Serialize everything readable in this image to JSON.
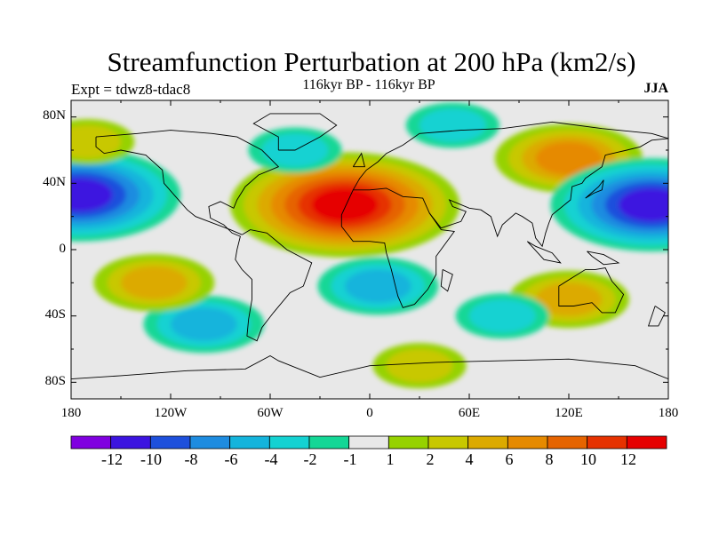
{
  "header": {
    "title": "Streamfunction Perturbation at 200 hPa (km2/s)",
    "experiment": "Expt = tdwz8-tdac8",
    "subtitle": "116kyr BP - 116kyr BP",
    "season": "JJA"
  },
  "axes": {
    "lat_labels": [
      "80N",
      "40N",
      "0",
      "40S",
      "80S"
    ],
    "lon_labels": [
      "180",
      "120W",
      "60W",
      "0",
      "60E",
      "120E",
      "180"
    ]
  },
  "colorbar": {
    "labels": [
      "-12",
      "-10",
      "-8",
      "-6",
      "-4",
      "-2",
      "-1",
      "1",
      "2",
      "4",
      "6",
      "8",
      "10",
      "12"
    ],
    "colors": [
      "#8000e0",
      "#3c14e0",
      "#1e50dc",
      "#1e8ce0",
      "#14b4dc",
      "#14d2d2",
      "#14d796",
      "#e8e8e8",
      "#96d200",
      "#c8c800",
      "#dcaa00",
      "#e68a00",
      "#e66400",
      "#e63200",
      "#e60000"
    ]
  },
  "chart_data": {
    "type": "heatmap",
    "title": "Streamfunction Perturbation at 200 hPa (km2/s)",
    "subtitle": "116kyr BP - 116kyr BP",
    "season": "JJA",
    "projection": "cylindrical equidistant",
    "lon_range": [
      -180,
      180
    ],
    "lat_range": [
      -90,
      90
    ],
    "contour_levels": [
      -12,
      -10,
      -8,
      -6,
      -4,
      -2,
      -1,
      1,
      2,
      4,
      6,
      8,
      10,
      12
    ],
    "features": [
      {
        "name": "max-north-africa",
        "lon": -15,
        "lat": 27,
        "value": 12
      },
      {
        "name": "max-central-asia",
        "lon": 120,
        "lat": 55,
        "value": 6
      },
      {
        "name": "min-east-pacific",
        "lon": -175,
        "lat": 33,
        "value": -10
      },
      {
        "name": "min-west-pacific",
        "lon": 170,
        "lat": 27,
        "value": -10
      },
      {
        "name": "min-south-atlantic",
        "lon": 5,
        "lat": -22,
        "value": -4
      },
      {
        "name": "min-south-pacific",
        "lon": -100,
        "lat": -45,
        "value": -4
      },
      {
        "name": "max-south-pacific",
        "lon": -130,
        "lat": -20,
        "value": 4
      },
      {
        "name": "max-australia",
        "lon": 120,
        "lat": -30,
        "value": 4
      },
      {
        "name": "max-north-pacific",
        "lon": -170,
        "lat": 65,
        "value": 2
      },
      {
        "name": "min-north-atlantic",
        "lon": -45,
        "lat": 60,
        "value": -2
      },
      {
        "name": "min-arctic-siberia",
        "lon": 50,
        "lat": 75,
        "value": -2
      },
      {
        "name": "min-south-indian",
        "lon": 80,
        "lat": -40,
        "value": -2
      },
      {
        "name": "max-southern-ocean",
        "lon": 30,
        "lat": -70,
        "value": 2
      }
    ]
  }
}
